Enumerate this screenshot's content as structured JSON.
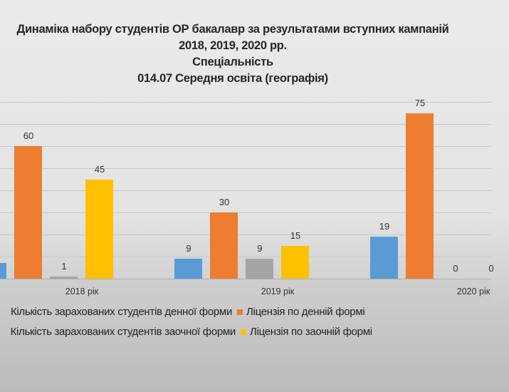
{
  "chart_data": {
    "type": "bar",
    "title": [
      "Динаміка набору студентів ОР бакалавр за результатами вступних кампаній",
      "2018, 2019, 2020 рр.",
      "Спеціальність",
      "014.07 Середня освіта (географія)"
    ],
    "categories": [
      "2018 рік",
      "2019 рік",
      "2020 рік"
    ],
    "ylim": [
      0,
      80
    ],
    "grid": true,
    "legend_position": "bottom",
    "series": [
      {
        "name": "Кількість зарахованих студентів денної форми",
        "color": "#5b9bd5",
        "values": [
          7,
          9,
          19
        ]
      },
      {
        "name": "Ліцензія по денній формі",
        "color": "#ed7d31",
        "values": [
          60,
          30,
          75
        ]
      },
      {
        "name": "Кількість зарахованих студентів заочної форми",
        "color": "#a5a5a5",
        "values": [
          1,
          9,
          0
        ]
      },
      {
        "name": "Ліцензія по заочній формі",
        "color": "#ffc000",
        "values": [
          45,
          15,
          0
        ]
      }
    ]
  }
}
